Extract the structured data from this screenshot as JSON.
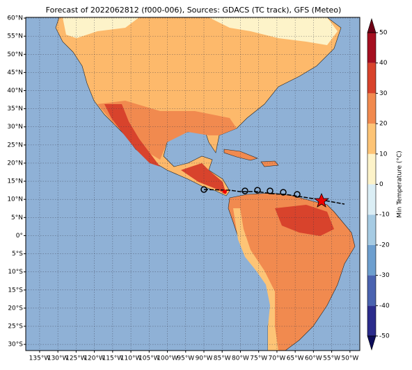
{
  "chart_data": {
    "type": "map",
    "title": "Forecast of 2022062812 (f000-006), Sources: GDACS (TC track), GFS (Meteo)",
    "xlim": [
      -138.8,
      -47.3
    ],
    "ylim": [
      -31.7,
      60.2
    ],
    "xticks": [
      {
        "value": -135,
        "label": "135°W"
      },
      {
        "value": -130,
        "label": "130°W"
      },
      {
        "value": -125,
        "label": "125°W"
      },
      {
        "value": -120,
        "label": "120°W"
      },
      {
        "value": -115,
        "label": "115°W"
      },
      {
        "value": -110,
        "label": "110°W"
      },
      {
        "value": -105,
        "label": "105°W"
      },
      {
        "value": -100,
        "label": "100°W"
      },
      {
        "value": -95,
        "label": "95°W"
      },
      {
        "value": -90,
        "label": "90°W"
      },
      {
        "value": -85,
        "label": "85°W"
      },
      {
        "value": -80,
        "label": "80°W"
      },
      {
        "value": -75,
        "label": "75°W"
      },
      {
        "value": -70,
        "label": "70°W"
      },
      {
        "value": -65,
        "label": "65°W"
      },
      {
        "value": -60,
        "label": "60°W"
      },
      {
        "value": -55,
        "label": "55°W"
      },
      {
        "value": -50,
        "label": "50°W"
      }
    ],
    "yticks": [
      {
        "value": 60,
        "label": "60°N"
      },
      {
        "value": 55,
        "label": "55°N"
      },
      {
        "value": 50,
        "label": "50°N"
      },
      {
        "value": 45,
        "label": "45°N"
      },
      {
        "value": 40,
        "label": "40°N"
      },
      {
        "value": 35,
        "label": "35°N"
      },
      {
        "value": 30,
        "label": "30°N"
      },
      {
        "value": 25,
        "label": "25°N"
      },
      {
        "value": 20,
        "label": "20°N"
      },
      {
        "value": 15,
        "label": "15°N"
      },
      {
        "value": 10,
        "label": "10°N"
      },
      {
        "value": 5,
        "label": "5°N"
      },
      {
        "value": 0,
        "label": "0°"
      },
      {
        "value": -5,
        "label": "5°S"
      },
      {
        "value": -10,
        "label": "10°S"
      },
      {
        "value": -15,
        "label": "15°S"
      },
      {
        "value": -20,
        "label": "20°S"
      },
      {
        "value": -25,
        "label": "25°S"
      },
      {
        "value": -30,
        "label": "30°S"
      }
    ],
    "grid": true,
    "colorbar": {
      "label": "Min Temperature (°C)",
      "lim": [
        -50,
        50
      ],
      "levels": [
        -50,
        -40,
        -30,
        -20,
        -10,
        0,
        10,
        20,
        30,
        40,
        50
      ],
      "colors": [
        "#2b2c8c",
        "#4a63b0",
        "#6d9fcf",
        "#a6cbe3",
        "#dbeef5",
        "#fdf3c9",
        "#fdc476",
        "#f18a4f",
        "#d8432c",
        "#a50f20"
      ],
      "extend_colors": [
        "#0d0d5a",
        "#6e0016"
      ],
      "ticks": [
        -50,
        -40,
        -30,
        -20,
        -10,
        0,
        10,
        20,
        30,
        40,
        50
      ]
    }
  }
}
